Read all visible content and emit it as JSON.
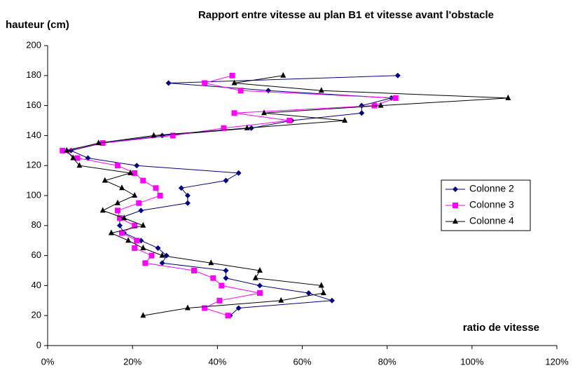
{
  "chart_data": {
    "type": "line",
    "title": "Rapport entre vitesse au plan B1 et vitesse avant l'obstacle",
    "ylabel": "hauteur (cm)",
    "xlabel": "ratio de vitesse",
    "y": [
      180,
      175,
      170,
      165,
      160,
      155,
      150,
      145,
      140,
      135,
      130,
      125,
      120,
      115,
      110,
      105,
      100,
      95,
      90,
      85,
      80,
      75,
      70,
      65,
      60,
      55,
      50,
      45,
      40,
      35,
      30,
      25,
      20
    ],
    "series": [
      {
        "name": "Colonne 2",
        "color": "#000080",
        "marker": "diamond",
        "values": [
          82.5,
          28.5,
          52,
          81,
          74,
          74,
          57.5,
          48,
          27,
          13,
          5.5,
          9.5,
          21,
          45,
          42,
          31.5,
          33,
          33,
          22,
          17,
          17,
          18,
          22,
          26,
          28,
          27,
          42,
          42,
          50,
          61.5,
          67,
          45,
          43
        ]
      },
      {
        "name": "Colonne 3",
        "color": "#ff00ff",
        "marker": "square",
        "values": [
          43.5,
          37,
          45.5,
          82,
          77,
          44,
          57,
          41.5,
          29.5,
          13,
          3.5,
          7,
          16.5,
          20.5,
          22.5,
          25.5,
          26.5,
          21.5,
          16.5,
          17,
          20.5,
          17.5,
          21,
          20.5,
          24.5,
          23,
          34.5,
          39,
          41,
          50,
          40.5,
          37,
          42.5
        ]
      },
      {
        "name": "Colonne 4",
        "color": "#000000",
        "marker": "triangle",
        "values": [
          55.5,
          44,
          64.5,
          108.5,
          78.5,
          51,
          70,
          47,
          25,
          12,
          4.5,
          6,
          7.5,
          19.5,
          13.5,
          17.5,
          20.5,
          16.5,
          13,
          18,
          22.5,
          15,
          19,
          22.5,
          27,
          38.5,
          50,
          49,
          64.5,
          65,
          55,
          33,
          22.5
        ]
      }
    ],
    "xlim": [
      0,
      120
    ],
    "xticks": [
      {
        "value": 0,
        "label": "0%"
      },
      {
        "value": 20,
        "label": "20%"
      },
      {
        "value": 40,
        "label": "40%"
      },
      {
        "value": 60,
        "label": "60%"
      },
      {
        "value": 80,
        "label": "80%"
      },
      {
        "value": 100,
        "label": "100%"
      },
      {
        "value": 120,
        "label": "120%"
      }
    ],
    "ylim": [
      0,
      200
    ],
    "yticks": [
      0,
      20,
      40,
      60,
      80,
      100,
      120,
      140,
      160,
      180,
      200
    ],
    "legend": "right"
  }
}
